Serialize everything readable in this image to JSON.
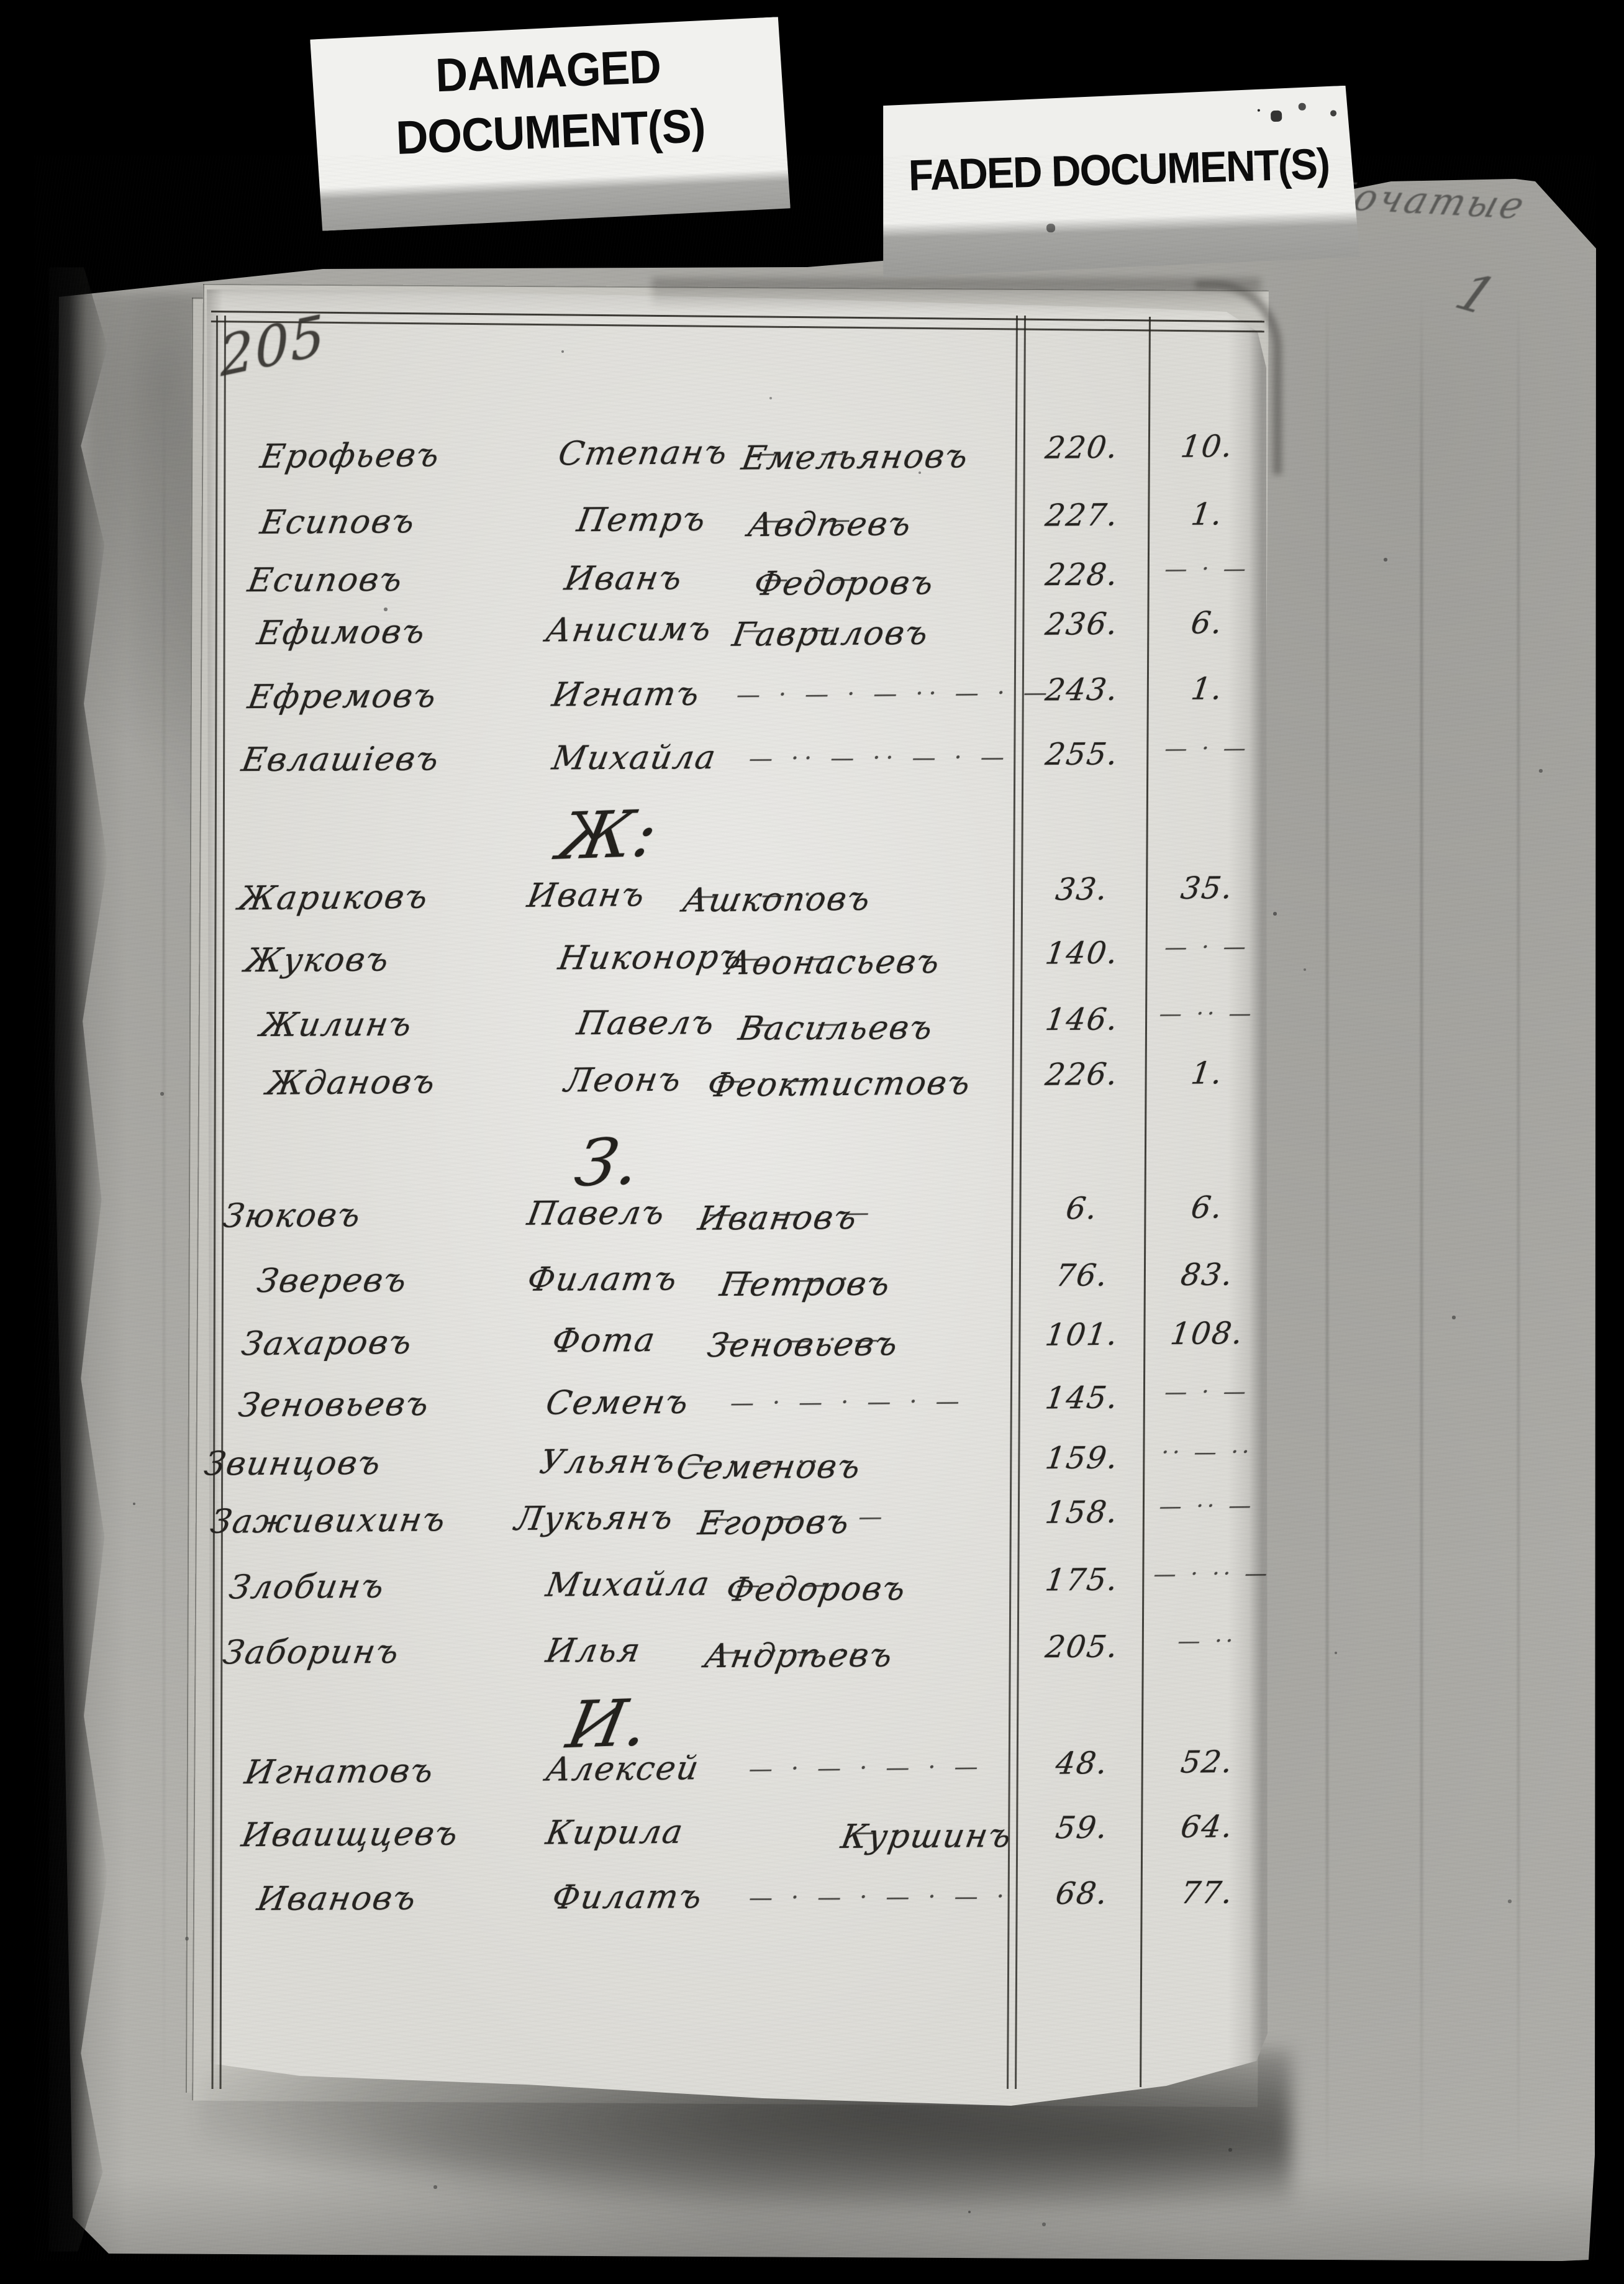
{
  "stickers": {
    "damaged_line1": "DAMAGED",
    "damaged_line2": "DOCUMENT(S)",
    "faded": "FADED DOCUMENT(S)"
  },
  "pencil": {
    "note": "Початые",
    "page_number": "1"
  },
  "page": {
    "folio_number": "205"
  },
  "index": {
    "sections": [
      {
        "letter": "",
        "entries": [
          {
            "surname": "Ерофьевъ",
            "given": "Степанъ",
            "patronymic": "Емельяновъ",
            "leader": "— · —",
            "col1": "220.",
            "col2": "10."
          },
          {
            "surname": "Есиповъ",
            "given": "Петръ",
            "patronymic": "Авдѣевъ",
            "leader": "— · —",
            "col1": "227.",
            "col2": "1."
          },
          {
            "surname": "Есиповъ",
            "given": "Иванъ",
            "patronymic": "Федоровъ",
            "leader": "— · — ·",
            "col1": "228.",
            "col2": "— · —"
          },
          {
            "surname": "Ефимовъ",
            "given": "Анисимъ",
            "patronymic": "Гавриловъ",
            "leader": "— · —",
            "col1": "236.",
            "col2": "6."
          },
          {
            "surname": "Ефремовъ",
            "given": "Игнатъ",
            "patronymic": "",
            "leader": "— · — · — ·· — · —",
            "col1": "243.",
            "col2": "1."
          },
          {
            "surname": "Евлашіевъ",
            "given": "Михайла",
            "patronymic": "",
            "leader": "— ·· — ·· — · —",
            "col1": "255.",
            "col2": "— · —"
          }
        ]
      },
      {
        "letter": "Ж:",
        "entries": [
          {
            "surname": "Жариковъ",
            "given": "Иванъ",
            "patronymic": "Ашкоповъ",
            "leader": "— · — ··",
            "col1": "33.",
            "col2": "35."
          },
          {
            "surname": "Жуковъ",
            "given": "Никоноръ",
            "patronymic": "Аѳонасьевъ",
            "leader": "— · — ··",
            "col1": "140.",
            "col2": "— · —"
          },
          {
            "surname": "Жилинъ",
            "given": "Павелъ",
            "patronymic": "Васильевъ",
            "leader": "— · —",
            "col1": "146.",
            "col2": "— ·· —"
          },
          {
            "surname": "Ждановъ",
            "given": "Леонъ",
            "patronymic": "Феоктистовъ",
            "leader": "— · —",
            "col1": "226.",
            "col2": "1."
          }
        ]
      },
      {
        "letter": "З.",
        "entries": [
          {
            "surname": "Зюковъ",
            "given": "Павелъ",
            "patronymic": "Ивановъ",
            "leader": "— · — · —",
            "col1": "6.",
            "col2": "6."
          },
          {
            "surname": "Зверевъ",
            "given": "Филатъ",
            "patronymic": "Петровъ",
            "leader": "— · — ·",
            "col1": "76.",
            "col2": "83."
          },
          {
            "surname": "Захаровъ",
            "given": "Фота",
            "patronymic": "Зеновьевъ",
            "leader": "— · — · —",
            "col1": "101.",
            "col2": "108."
          },
          {
            "surname": "Зеновьевъ",
            "given": "Семенъ",
            "patronymic": "",
            "leader": "— · — · — · —",
            "col1": "145.",
            "col2": "— · —"
          },
          {
            "surname": "Звинцовъ",
            "given": "Ульянъ",
            "patronymic": "Семеновъ",
            "leader": "— · — ··",
            "col1": "159.",
            "col2": "·· — ··"
          },
          {
            "surname": "Заживихинъ",
            "given": "Лукьянъ",
            "patronymic": "Егоровъ",
            "leader": "— · — ·· —",
            "col1": "158.",
            "col2": "— ·· —"
          },
          {
            "surname": "Злобинъ",
            "given": "Михайла",
            "patronymic": "Федоровъ",
            "leader": "— · — ·",
            "col1": "175.",
            "col2": "— · ·· —"
          },
          {
            "surname": "Заборинъ",
            "given": "Илья",
            "patronymic": "Андрѣевъ",
            "leader": "— ·· — ··",
            "col1": "205.",
            "col2": "— ··"
          }
        ]
      },
      {
        "letter": "И.",
        "entries": [
          {
            "surname": "Игнатовъ",
            "given": "Алексей",
            "patronymic": "",
            "leader": "— · — · — · —",
            "col1": "48.",
            "col2": "52."
          },
          {
            "surname": "Иваищцевъ",
            "given": "Кирила",
            "patronymic": "Куршинъ",
            "leader": "— ·",
            "col1": "59.",
            "col2": "64."
          },
          {
            "surname": "Ивановъ",
            "given": "Филатъ",
            "patronymic": "",
            "leader": "— · — · — · — ·",
            "col1": "68.",
            "col2": "77."
          }
        ]
      }
    ]
  }
}
